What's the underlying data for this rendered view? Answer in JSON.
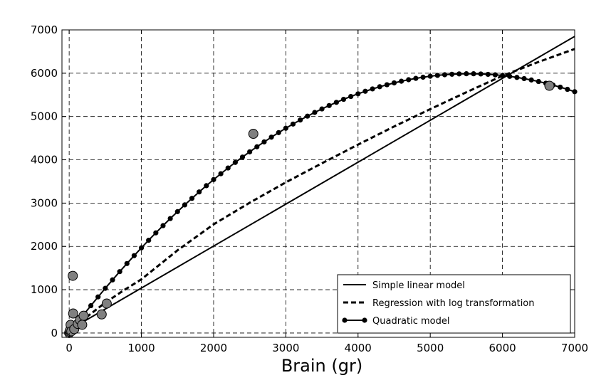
{
  "chart_data": {
    "type": "scatter",
    "title": "",
    "xlabel": "Brain (gr)",
    "ylabel": "",
    "xlim": [
      -100,
      7000
    ],
    "ylim": [
      -100,
      7000
    ],
    "xticks": [
      0,
      1000,
      2000,
      3000,
      4000,
      5000,
      6000,
      7000
    ],
    "yticks": [
      0,
      1000,
      2000,
      3000,
      4000,
      5000,
      6000,
      7000
    ],
    "xtick_labels": [
      "0",
      "1000",
      "2000",
      "3000",
      "4000",
      "5000",
      "6000",
      "7000"
    ],
    "ytick_labels": [
      "0",
      "1000",
      "2000",
      "3000",
      "4000",
      "5000",
      "6000",
      "7000"
    ],
    "grid": true,
    "legend_position": "bottom-right",
    "points": [
      {
        "x": 0,
        "y": 0
      },
      {
        "x": 5,
        "y": 30
      },
      {
        "x": 10,
        "y": 60
      },
      {
        "x": 20,
        "y": 190
      },
      {
        "x": 30,
        "y": 40
      },
      {
        "x": 50,
        "y": 1320
      },
      {
        "x": 55,
        "y": 450
      },
      {
        "x": 70,
        "y": 90
      },
      {
        "x": 120,
        "y": 210
      },
      {
        "x": 150,
        "y": 300
      },
      {
        "x": 180,
        "y": 190
      },
      {
        "x": 200,
        "y": 400
      },
      {
        "x": 450,
        "y": 430
      },
      {
        "x": 520,
        "y": 680
      },
      {
        "x": 2550,
        "y": 4600
      },
      {
        "x": 6650,
        "y": 5710
      }
    ],
    "series": [
      {
        "name": "Simple linear model",
        "style": "solid",
        "x": [
          0,
          7000
        ],
        "y": [
          70,
          6850
        ]
      },
      {
        "name": "Regression with log transformation",
        "style": "dashed",
        "x": [
          0,
          100,
          250,
          500,
          750,
          1000,
          1500,
          2000,
          2500,
          3000,
          3500,
          4000,
          4500,
          5000,
          5500,
          6000,
          6500,
          7000
        ],
        "y": [
          0,
          180,
          380,
          700,
          980,
          1240,
          1910,
          2510,
          3010,
          3480,
          3920,
          4350,
          4770,
          5170,
          5560,
          5940,
          6260,
          6560
        ]
      },
      {
        "name": "Quadratic model",
        "style": "dot-line",
        "formula": "y = 0.22 + 2.161*x - 0.000195*x^2",
        "x_range": [
          0,
          7000
        ],
        "x_step": 100
      }
    ],
    "colors": {
      "lines": "#000000",
      "scatter_fill": "#808080",
      "scatter_edge": "#000000",
      "grid": "#000000"
    }
  }
}
